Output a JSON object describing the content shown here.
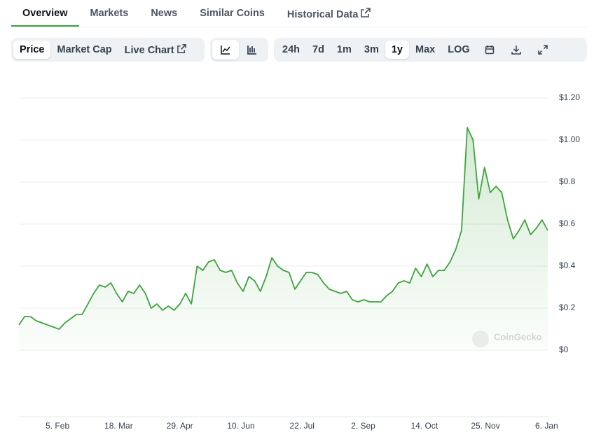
{
  "tabs": [
    "Overview",
    "Markets",
    "News",
    "Similar Coins",
    "Historical Data"
  ],
  "toolbar": {
    "metrics": [
      "Price",
      "Market Cap",
      "Live Chart"
    ],
    "ranges": [
      "24h",
      "7d",
      "1m",
      "3m",
      "1y",
      "Max",
      "LOG"
    ]
  },
  "chart_data": {
    "type": "line",
    "color": "#3da33d",
    "values": [
      0.12,
      0.16,
      0.16,
      0.14,
      0.13,
      0.12,
      0.11,
      0.1,
      0.13,
      0.15,
      0.17,
      0.17,
      0.22,
      0.27,
      0.31,
      0.3,
      0.32,
      0.27,
      0.23,
      0.28,
      0.27,
      0.31,
      0.27,
      0.2,
      0.22,
      0.19,
      0.21,
      0.19,
      0.22,
      0.27,
      0.22,
      0.4,
      0.38,
      0.42,
      0.43,
      0.38,
      0.37,
      0.38,
      0.32,
      0.28,
      0.35,
      0.33,
      0.28,
      0.35,
      0.44,
      0.4,
      0.38,
      0.37,
      0.29,
      0.33,
      0.37,
      0.37,
      0.36,
      0.32,
      0.29,
      0.28,
      0.27,
      0.28,
      0.24,
      0.23,
      0.24,
      0.23,
      0.23,
      0.23,
      0.26,
      0.28,
      0.32,
      0.33,
      0.32,
      0.39,
      0.35,
      0.41,
      0.35,
      0.38,
      0.38,
      0.42,
      0.48,
      0.57,
      1.06,
      1.0,
      0.72,
      0.87,
      0.75,
      0.78,
      0.75,
      0.62,
      0.53,
      0.57,
      0.62,
      0.55,
      0.58,
      0.62,
      0.57
    ],
    "ylim": [
      0,
      1.2
    ],
    "yticks": [
      {
        "value": 0,
        "label": "$0"
      },
      {
        "value": 0.2,
        "label": "$0.2"
      },
      {
        "value": 0.4,
        "label": "$0.4"
      },
      {
        "value": 0.6,
        "label": "$0.6"
      },
      {
        "value": 0.8,
        "label": "$0.8"
      },
      {
        "value": 1,
        "label": "$1.00"
      },
      {
        "value": 1.2,
        "label": "$1.20"
      }
    ],
    "xtick_labels": [
      "5. Feb",
      "18. Mar",
      "29. Apr",
      "10. Jun",
      "22. Jul",
      "2. Sep",
      "14. Oct",
      "25. Nov",
      "6. Jan"
    ],
    "grid": true,
    "watermark": "CoinGecko"
  }
}
